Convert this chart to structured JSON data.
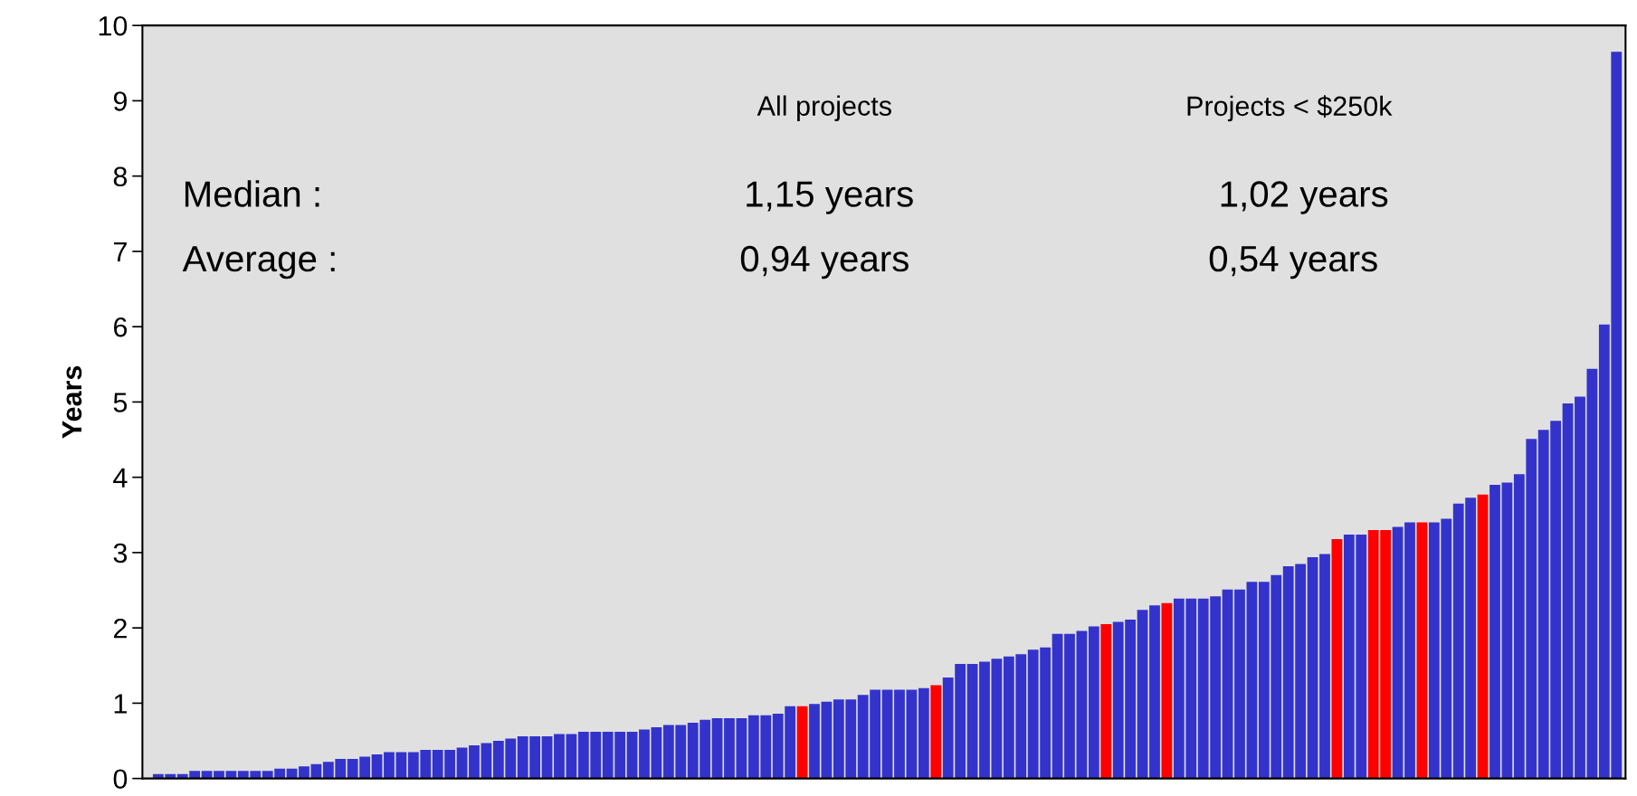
{
  "chart_data": {
    "type": "bar",
    "ylabel": "Years",
    "categories": [
      null,
      null,
      null,
      null,
      null,
      null,
      null,
      null,
      null,
      null,
      null,
      null,
      null,
      null,
      null,
      null,
      null,
      null,
      null,
      null,
      null,
      null,
      null,
      null,
      null,
      null,
      null,
      null,
      null,
      null,
      null,
      null,
      null,
      null,
      null,
      null,
      null,
      null,
      null,
      null,
      null,
      null,
      null,
      null,
      null,
      null,
      null,
      null,
      null,
      null,
      null,
      null,
      null,
      null,
      null,
      null,
      null,
      null,
      null,
      null,
      null,
      null,
      null,
      null,
      null,
      null,
      null,
      null,
      null,
      null,
      null,
      null,
      null,
      null,
      null,
      null,
      null,
      null,
      null,
      null,
      null,
      null,
      null,
      null,
      null,
      null,
      null,
      null,
      null,
      null,
      null,
      null,
      null,
      null,
      null,
      null,
      null,
      null,
      null,
      null,
      null,
      null,
      null,
      null,
      null,
      null,
      null,
      null,
      null,
      null,
      null,
      null,
      null,
      null,
      null,
      null,
      null,
      null,
      null,
      null,
      null
    ],
    "values": [
      0.06,
      0.06,
      0.06,
      0.1,
      0.1,
      0.1,
      0.1,
      0.1,
      0.1,
      0.1,
      0.13,
      0.13,
      0.16,
      0.19,
      0.22,
      0.26,
      0.26,
      0.29,
      0.32,
      0.35,
      0.35,
      0.35,
      0.38,
      0.38,
      0.38,
      0.41,
      0.44,
      0.47,
      0.5,
      0.53,
      0.56,
      0.56,
      0.56,
      0.59,
      0.59,
      0.62,
      0.62,
      0.62,
      0.62,
      0.62,
      0.65,
      0.68,
      0.71,
      0.71,
      0.74,
      0.78,
      0.8,
      0.8,
      0.8,
      0.84,
      0.84,
      0.86,
      0.96,
      0.96,
      0.99,
      1.02,
      1.05,
      1.05,
      1.11,
      1.18,
      1.18,
      1.18,
      1.18,
      1.2,
      1.24,
      1.34,
      1.52,
      1.52,
      1.55,
      1.59,
      1.62,
      1.65,
      1.71,
      1.74,
      1.92,
      1.92,
      1.96,
      2.02,
      2.05,
      2.08,
      2.11,
      2.24,
      2.3,
      2.33,
      2.39,
      2.39,
      2.39,
      2.42,
      2.51,
      2.51,
      2.61,
      2.61,
      2.7,
      2.82,
      2.85,
      2.94,
      2.98,
      3.18,
      3.24,
      3.24,
      3.3,
      3.3,
      3.34,
      3.4,
      3.4,
      3.4,
      3.45,
      3.65,
      3.73,
      3.77,
      3.9,
      3.93,
      4.04,
      4.51,
      4.63,
      4.75,
      4.98,
      5.07,
      5.44,
      6.03,
      9.65
    ],
    "colors": [
      "#3333cc",
      "#3333cc",
      "#3333cc",
      "#3333cc",
      "#3333cc",
      "#3333cc",
      "#3333cc",
      "#3333cc",
      "#3333cc",
      "#3333cc",
      "#3333cc",
      "#3333cc",
      "#3333cc",
      "#3333cc",
      "#3333cc",
      "#3333cc",
      "#3333cc",
      "#3333cc",
      "#3333cc",
      "#3333cc",
      "#3333cc",
      "#3333cc",
      "#3333cc",
      "#3333cc",
      "#3333cc",
      "#3333cc",
      "#3333cc",
      "#3333cc",
      "#3333cc",
      "#3333cc",
      "#3333cc",
      "#3333cc",
      "#3333cc",
      "#3333cc",
      "#3333cc",
      "#3333cc",
      "#3333cc",
      "#3333cc",
      "#3333cc",
      "#3333cc",
      "#3333cc",
      "#3333cc",
      "#3333cc",
      "#3333cc",
      "#3333cc",
      "#3333cc",
      "#3333cc",
      "#3333cc",
      "#3333cc",
      "#3333cc",
      "#3333cc",
      "#3333cc",
      "#3333cc",
      "#ff0000",
      "#3333cc",
      "#3333cc",
      "#3333cc",
      "#3333cc",
      "#3333cc",
      "#3333cc",
      "#3333cc",
      "#3333cc",
      "#3333cc",
      "#3333cc",
      "#ff0000",
      "#3333cc",
      "#3333cc",
      "#3333cc",
      "#3333cc",
      "#3333cc",
      "#3333cc",
      "#3333cc",
      "#3333cc",
      "#3333cc",
      "#3333cc",
      "#3333cc",
      "#3333cc",
      "#3333cc",
      "#ff0000",
      "#3333cc",
      "#3333cc",
      "#3333cc",
      "#3333cc",
      "#ff0000",
      "#3333cc",
      "#3333cc",
      "#3333cc",
      "#3333cc",
      "#3333cc",
      "#3333cc",
      "#3333cc",
      "#3333cc",
      "#3333cc",
      "#3333cc",
      "#3333cc",
      "#3333cc",
      "#3333cc",
      "#ff0000",
      "#3333cc",
      "#3333cc",
      "#ff0000",
      "#ff0000",
      "#3333cc",
      "#3333cc",
      "#ff0000",
      "#3333cc",
      "#3333cc",
      "#3333cc",
      "#3333cc",
      "#ff0000",
      "#3333cc",
      "#3333cc",
      "#3333cc",
      "#3333cc",
      "#3333cc",
      "#3333cc",
      "#3333cc",
      "#3333cc",
      "#3333cc",
      "#3333cc",
      "#3333cc"
    ],
    "ylim": [
      0,
      10
    ],
    "yticks": [
      0,
      1,
      2,
      3,
      4,
      5,
      6,
      7,
      8,
      9,
      10
    ],
    "grid": false,
    "annotations": [
      "All projects",
      "Projects < $250k",
      "Median :",
      "1,15 years",
      "1,02 years",
      "Average :",
      "0,94 years",
      "0,54 years"
    ]
  }
}
